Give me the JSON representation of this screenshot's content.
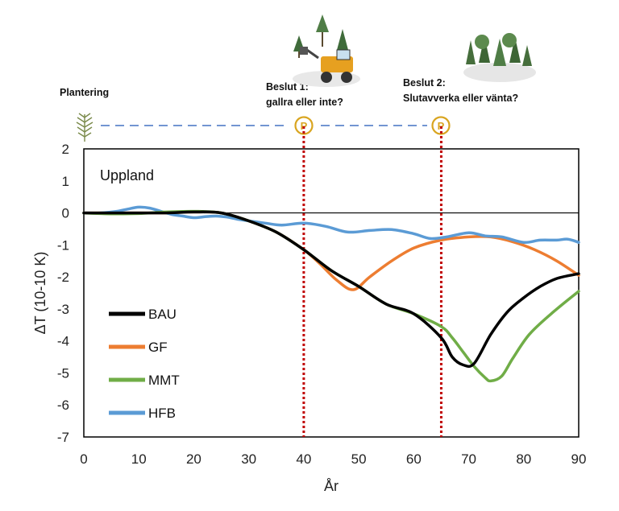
{
  "chart_data": {
    "type": "line",
    "title": "",
    "region_label": "Uppland",
    "xlabel": "År",
    "ylabel": "ΔT (10-10 K)",
    "xlim": [
      0,
      90
    ],
    "ylim": [
      -7,
      2
    ],
    "x_ticks": [
      0,
      10,
      20,
      30,
      40,
      50,
      60,
      70,
      80,
      90
    ],
    "y_ticks": [
      2,
      1,
      0,
      -1,
      -2,
      -3,
      -4,
      -5,
      -6,
      -7
    ],
    "grid": false,
    "legend_position": "lower-left",
    "zero_line": true,
    "vlines": [
      40,
      65
    ],
    "series": [
      {
        "name": "BAU",
        "color": "#000000",
        "x": [
          0,
          5,
          10,
          15,
          20,
          25,
          30,
          35,
          40,
          45,
          50,
          55,
          60,
          65,
          67,
          69,
          71,
          74,
          77,
          80,
          83,
          86,
          90
        ],
        "y": [
          0,
          0,
          0,
          0,
          0.03,
          0,
          -0.25,
          -0.6,
          -1.15,
          -1.8,
          -2.3,
          -2.85,
          -3.15,
          -3.9,
          -4.5,
          -4.75,
          -4.7,
          -3.8,
          -3.1,
          -2.65,
          -2.3,
          -2.05,
          -1.9
        ]
      },
      {
        "name": "GF",
        "color": "#ED7D31",
        "x": [
          0,
          5,
          10,
          15,
          20,
          25,
          30,
          35,
          40,
          43,
          46,
          49,
          52,
          56,
          60,
          65,
          70,
          74,
          78,
          82,
          86,
          90
        ],
        "y": [
          0,
          0,
          0,
          0,
          0.03,
          0,
          -0.25,
          -0.6,
          -1.15,
          -1.6,
          -2.1,
          -2.4,
          -2.0,
          -1.5,
          -1.1,
          -0.85,
          -0.75,
          -0.75,
          -0.9,
          -1.15,
          -1.5,
          -1.95
        ]
      },
      {
        "name": "MMT",
        "color": "#70AD47",
        "x": [
          0,
          5,
          10,
          15,
          20,
          25,
          30,
          35,
          40,
          45,
          50,
          55,
          60,
          65,
          67,
          69,
          71,
          73,
          74,
          76,
          78,
          81,
          85,
          90
        ],
        "y": [
          0,
          -0.03,
          -0.02,
          0.03,
          0.05,
          0,
          -0.25,
          -0.6,
          -1.15,
          -1.8,
          -2.3,
          -2.85,
          -3.15,
          -3.55,
          -3.9,
          -4.35,
          -4.8,
          -5.15,
          -5.25,
          -5.1,
          -4.55,
          -3.8,
          -3.15,
          -2.45
        ]
      },
      {
        "name": "HFB",
        "color": "#5B9BD5",
        "x": [
          0,
          3,
          6,
          8,
          10,
          12,
          14,
          16,
          18,
          20,
          22,
          24,
          26,
          28,
          30,
          33,
          36,
          40,
          44,
          48,
          52,
          56,
          60,
          63,
          66,
          70,
          73,
          76,
          80,
          83,
          86,
          88,
          90
        ],
        "y": [
          0,
          0,
          0.05,
          0.12,
          0.18,
          0.15,
          0.05,
          -0.05,
          -0.1,
          -0.15,
          -0.12,
          -0.1,
          -0.13,
          -0.2,
          -0.25,
          -0.32,
          -0.38,
          -0.32,
          -0.42,
          -0.6,
          -0.55,
          -0.52,
          -0.65,
          -0.8,
          -0.75,
          -0.62,
          -0.72,
          -0.75,
          -0.92,
          -0.85,
          -0.85,
          -0.82,
          -0.92
        ]
      }
    ],
    "annotations": {
      "planting": "Plantering",
      "decision1_line1": "Beslut 1:",
      "decision1_line2": "gallra eller inte?",
      "decision2_line1": "Beslut 2:",
      "decision2_line2": "Slutavverka eller vänta?",
      "marker_letter": "P"
    }
  },
  "colors": {
    "vline": "#C00000",
    "timeline": "#4472C4",
    "marker": "#D9A520"
  },
  "icons": [
    "planting-seedling-icon",
    "harvester-forest-icon",
    "forest-stand-icon"
  ]
}
